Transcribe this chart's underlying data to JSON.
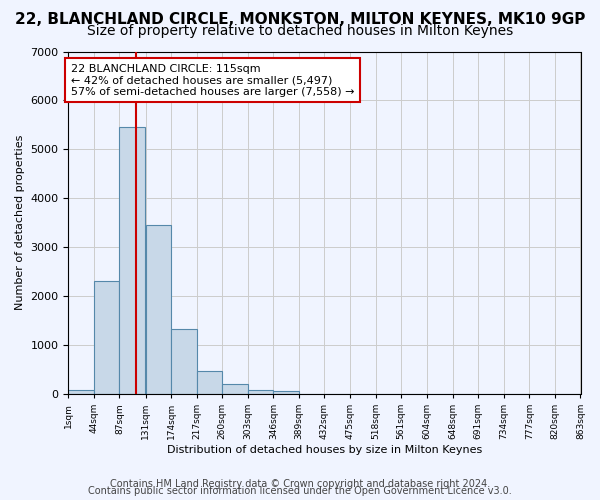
{
  "title": "22, BLANCHLAND CIRCLE, MONKSTON, MILTON KEYNES, MK10 9GP",
  "subtitle": "Size of property relative to detached houses in Milton Keynes",
  "xlabel": "Distribution of detached houses by size in Milton Keynes",
  "ylabel": "Number of detached properties",
  "bar_color": "#c8d8e8",
  "bar_edgecolor": "#5588aa",
  "bin_edges": [
    1,
    44,
    87,
    131,
    174,
    217,
    260,
    303,
    346,
    389,
    432,
    475,
    518,
    561,
    604,
    648,
    691,
    734,
    777,
    820,
    863
  ],
  "bar_heights": [
    75,
    2300,
    5450,
    3450,
    1325,
    475,
    200,
    90,
    55,
    0,
    0,
    0,
    0,
    0,
    0,
    0,
    0,
    0,
    0,
    0
  ],
  "tick_labels": [
    "1sqm",
    "44sqm",
    "87sqm",
    "131sqm",
    "174sqm",
    "217sqm",
    "260sqm",
    "303sqm",
    "346sqm",
    "389sqm",
    "432sqm",
    "475sqm",
    "518sqm",
    "561sqm",
    "604sqm",
    "648sqm",
    "691sqm",
    "734sqm",
    "777sqm",
    "820sqm",
    "863sqm"
  ],
  "property_size": 115,
  "red_line_color": "#cc0000",
  "annotation_text": "22 BLANCHLAND CIRCLE: 115sqm\n← 42% of detached houses are smaller (5,497)\n57% of semi-detached houses are larger (7,558) →",
  "annotation_box_color": "#ffffff",
  "annotation_box_edgecolor": "#cc0000",
  "ylim": [
    0,
    7000
  ],
  "yticks": [
    0,
    1000,
    2000,
    3000,
    4000,
    5000,
    6000,
    7000
  ],
  "grid_color": "#cccccc",
  "background_color": "#f0f4ff",
  "footer_line1": "Contains HM Land Registry data © Crown copyright and database right 2024.",
  "footer_line2": "Contains public sector information licensed under the Open Government Licence v3.0.",
  "title_fontsize": 11,
  "subtitle_fontsize": 10,
  "annotation_fontsize": 8,
  "footer_fontsize": 7
}
